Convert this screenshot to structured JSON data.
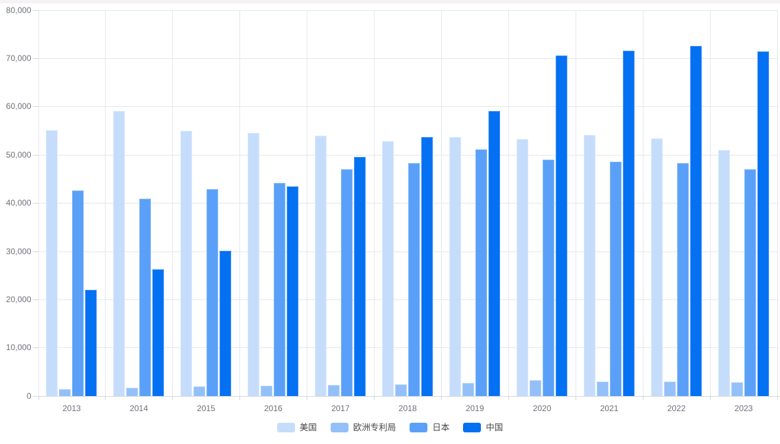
{
  "page": {
    "background_color": "#ffffff",
    "top_strip_color": "#f6f3f4",
    "grid_color": "#e4e7ed",
    "axis_color": "#d4d7de",
    "axis_label_color": "#6e7079",
    "legend_label_color": "#464646"
  },
  "chart_data": {
    "type": "bar",
    "title": "",
    "categories": [
      "2013",
      "2014",
      "2015",
      "2016",
      "2017",
      "2018",
      "2019",
      "2020",
      "2021",
      "2022",
      "2023"
    ],
    "series": [
      {
        "key": "us",
        "name": "美国",
        "color": "#c5ddfb",
        "border_color": "#d8e8fd",
        "values": [
          55100,
          59000,
          55000,
          54500,
          54000,
          52800,
          53700,
          53200,
          54100,
          53400,
          51000
        ]
      },
      {
        "key": "epo",
        "name": "欧洲专利局",
        "color": "#93c0f9",
        "border_color": "#b0d1fb",
        "values": [
          1400,
          1700,
          2000,
          2100,
          2300,
          2400,
          2600,
          3200,
          3000,
          3000,
          2800
        ]
      },
      {
        "key": "jp",
        "name": "日本",
        "color": "#5aa0f8",
        "border_color": "#86bcfa",
        "values": [
          42600,
          40800,
          42900,
          44200,
          47000,
          48300,
          51100,
          49000,
          48600,
          48300,
          47000
        ]
      },
      {
        "key": "cn",
        "name": "中国",
        "color": "#0470f2",
        "border_color": "#4d97f6",
        "values": [
          22000,
          26200,
          30100,
          43400,
          49500,
          53700,
          59100,
          70600,
          71600,
          72500,
          71400
        ]
      }
    ],
    "ylim": [
      0,
      80000
    ],
    "y_tick_step": 10000,
    "y_tick_labels": [
      "0",
      "10,000",
      "20,000",
      "30,000",
      "40,000",
      "50,000",
      "60,000",
      "70,000",
      "80,000"
    ],
    "grid": true,
    "legend_position": "bottom"
  }
}
